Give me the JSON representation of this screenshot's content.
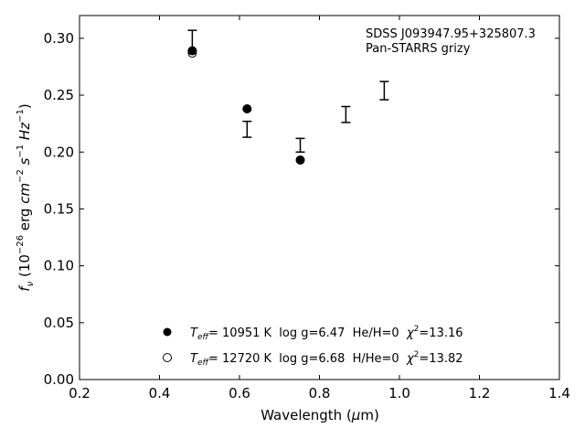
{
  "chart_data": {
    "type": "scatter",
    "annotations": [
      "SDSS J093947.95+325807.3",
      "Pan-STARRS grizy"
    ],
    "xlabel": "Wavelength (μm)",
    "ylabel": "f_ν (10^−26 erg cm^−2 s^−1 Hz^−1)",
    "xlim": [
      0.2,
      1.4
    ],
    "ylim": [
      0.0,
      0.32
    ],
    "xticks": [
      0.2,
      0.4,
      0.6,
      0.8,
      1.0,
      1.2,
      1.4
    ],
    "xtick_labels": [
      "0.2",
      "0.4",
      "0.6",
      "0.8",
      "1.0",
      "1.2",
      "1.4"
    ],
    "yticks": [
      0.0,
      0.05,
      0.1,
      0.15,
      0.2,
      0.25,
      0.3
    ],
    "ytick_labels": [
      "0.00",
      "0.05",
      "0.10",
      "0.15",
      "0.20",
      "0.25",
      "0.30"
    ],
    "grid": false,
    "legend_position": "lower-center",
    "observed": {
      "x": [
        0.482,
        0.619,
        0.752,
        0.866,
        0.962
      ],
      "y": [
        0.298,
        0.22,
        0.206,
        0.233,
        0.254
      ],
      "yerr": [
        0.009,
        0.007,
        0.006,
        0.007,
        0.008
      ]
    },
    "series": [
      {
        "name": "T_eff= 10951 K  log g=6.47  He/H=0  χ²=13.16",
        "marker": "filled-circle",
        "x": [
          0.482,
          0.619,
          0.752
        ],
        "y": [
          0.289,
          0.238,
          0.193
        ]
      },
      {
        "name": "T_eff= 12720 K  log g=6.68  H/He=0  χ²=13.82",
        "marker": "open-circle",
        "x": [
          0.482
        ],
        "y": [
          0.287
        ]
      }
    ],
    "colors": {
      "marker": "#000000",
      "axis": "#000000",
      "background": "#ffffff"
    }
  },
  "legend": {
    "items": [
      {
        "teff_label": "T",
        "teff_sub": "eff",
        "rest": "= 10951 K  log g=6.47  He/H=0  ",
        "chi": "χ",
        "chi_sup": "2",
        "chi_val": "=13.16"
      },
      {
        "teff_label": "T",
        "teff_sub": "eff",
        "rest": "= 12720 K  log g=6.68  H/He=0  ",
        "chi": "χ",
        "chi_sup": "2",
        "chi_val": "=13.82"
      }
    ]
  },
  "axis_text": {
    "x_main": "Wavelength (",
    "x_mu": "μ",
    "x_unit": "m)",
    "y_f": "f",
    "y_sub": "ν",
    "y_open": " (10",
    "y_exp1": "−26",
    "y_erg": " erg ",
    "y_cm": "cm",
    "y_exp2": "−2",
    "y_s": " s",
    "y_exp3": "−1",
    "y_hz": " Hz",
    "y_exp4": "−1",
    "y_close": ")"
  }
}
